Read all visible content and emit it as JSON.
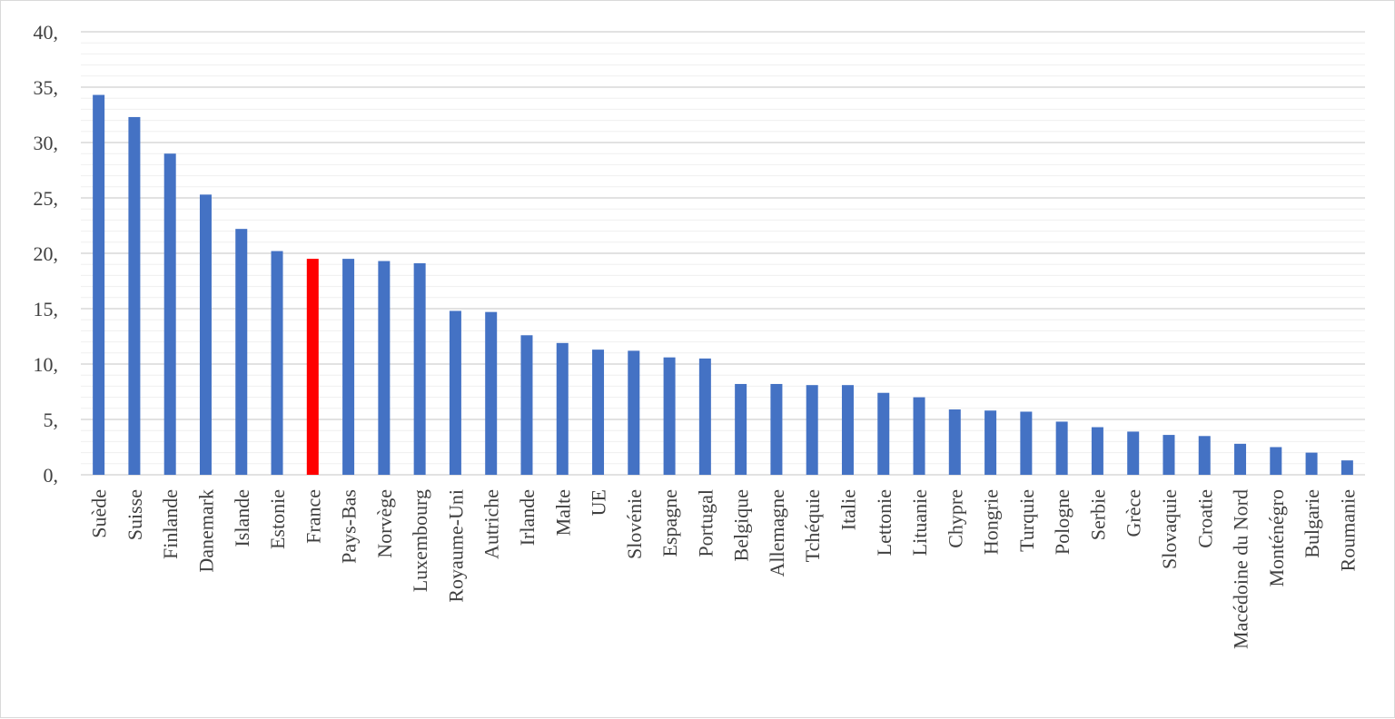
{
  "chart_data": {
    "type": "bar",
    "title": "",
    "xlabel": "",
    "ylabel": "",
    "ylim": [
      0,
      40
    ],
    "y_ticks": [
      0,
      5,
      10,
      15,
      20,
      25,
      30,
      35,
      40
    ],
    "y_tick_labels": [
      "0,",
      "5,",
      "10,",
      "15,",
      "20,",
      "25,",
      "30,",
      "35,",
      "40,"
    ],
    "grid": true,
    "legend": "none",
    "bar_color": "#4472c4",
    "highlight_color": "#ff0000",
    "gridline_color": "#d9d9d9",
    "highlight_category": "France",
    "categories": [
      "Suède",
      "Suisse",
      "Finlande",
      "Danemark",
      "Islande",
      "Estonie",
      "France",
      "Pays-Bas",
      "Norvège",
      "Luxembourg",
      "Royaume-Uni",
      "Autriche",
      "Irlande",
      "Malte",
      "UE",
      "Slovénie",
      "Espagne",
      "Portugal",
      "Belgique",
      "Allemagne",
      "Tchéquie",
      "Italie",
      "Lettonie",
      "Lituanie",
      "Chypre",
      "Hongrie",
      "Turquie",
      "Pologne",
      "Serbie",
      "Grèce",
      "Slovaquie",
      "Croatie",
      "Macédoine du Nord",
      "Monténégro",
      "Bulgarie",
      "Roumanie"
    ],
    "values": [
      34.3,
      32.3,
      29.0,
      25.3,
      22.2,
      20.2,
      19.5,
      19.5,
      19.3,
      19.1,
      14.8,
      14.7,
      12.6,
      11.9,
      11.3,
      11.2,
      10.6,
      10.5,
      8.2,
      8.2,
      8.1,
      8.1,
      7.4,
      7.0,
      5.9,
      5.8,
      5.7,
      4.8,
      4.3,
      3.9,
      3.6,
      3.5,
      2.8,
      2.5,
      2.0,
      1.3
    ]
  }
}
